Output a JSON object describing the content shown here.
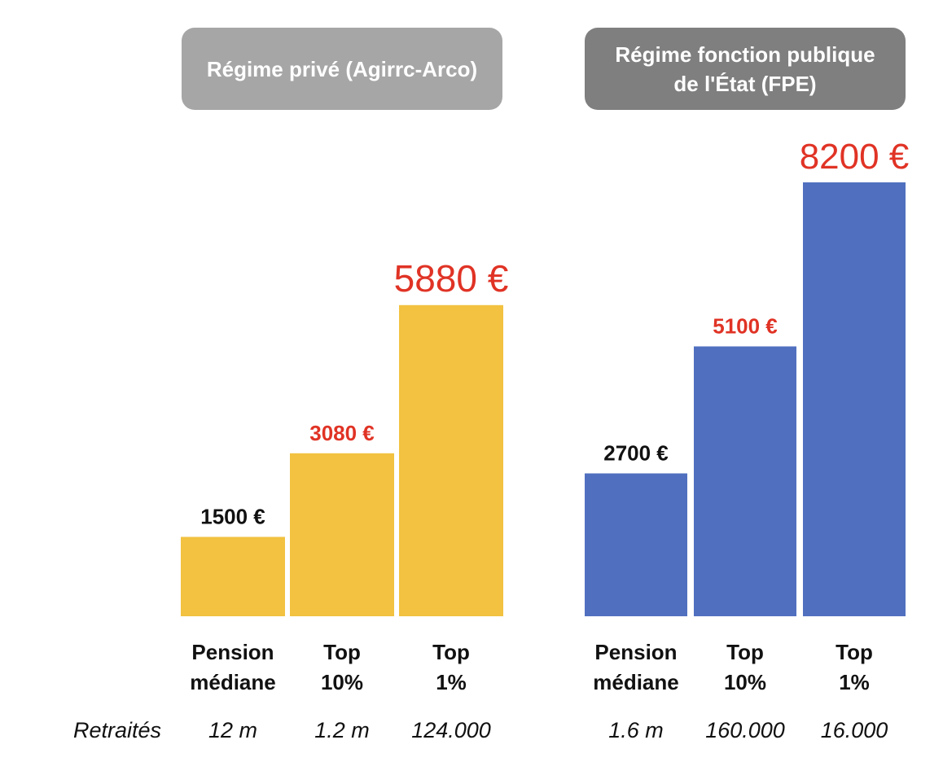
{
  "chart_data": [
    {
      "type": "bar",
      "title": "Régime privé (Agirrc-Arco)",
      "categories": [
        "Pension\nmédiane",
        "Top\n10%",
        "Top\n1%"
      ],
      "values": [
        1500,
        3080,
        5880
      ],
      "value_labels": [
        "1500 €",
        "3080 €",
        "5880 €"
      ],
      "retraites": [
        "12 m",
        "1.2 m",
        "124.000"
      ],
      "ylim": [
        0,
        8200
      ],
      "bar_color": "#f2c240"
    },
    {
      "type": "bar",
      "title": "Régime fonction publique\nde l'État (FPE)",
      "categories": [
        "Pension\nmédiane",
        "Top\n10%",
        "Top\n1%"
      ],
      "values": [
        2700,
        5100,
        8200
      ],
      "value_labels": [
        "2700 €",
        "5100 €",
        "8200 €"
      ],
      "retraites": [
        "1.6 m",
        "160.000",
        "16.000"
      ],
      "ylim": [
        0,
        8200
      ],
      "bar_color": "#5070bf"
    }
  ],
  "row_label": "Retraités",
  "colors": {
    "label_black": "#111111",
    "label_red": "#e03325",
    "header_left": "#a6a6a6",
    "header_right": "#7f7f7f"
  }
}
